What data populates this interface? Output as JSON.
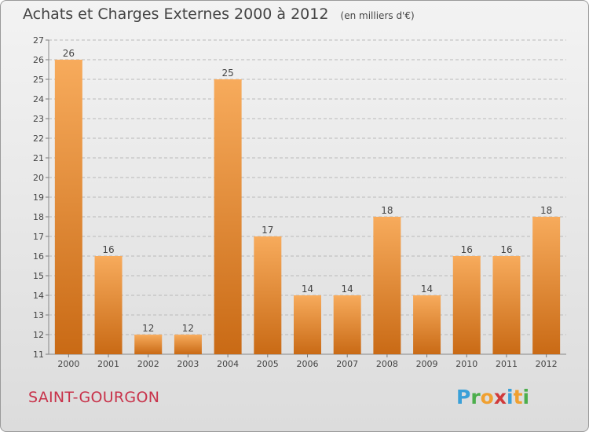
{
  "title": "Achats et Charges Externes 2000 à 2012",
  "unit": "(en milliers d'€)",
  "city": "SAINT-GOURGON",
  "brand": {
    "letters": [
      "P",
      "r",
      "o",
      "x",
      "i",
      "t",
      "i"
    ],
    "colors": [
      "#3aa0d8",
      "#4cae4c",
      "#f0a030",
      "#d03a3a",
      "#3aa0d8",
      "#f0a030",
      "#4cae4c"
    ]
  },
  "colors": {
    "bar": "#f28a28",
    "bar_light": "#f7ab5c",
    "bar_dark": "#c96a15",
    "grid": "#b9b9b9",
    "text": "#444444"
  },
  "chart_data": {
    "type": "bar",
    "title": "Achats et Charges Externes 2000 à 2012",
    "subtitle": "(en milliers d'€)",
    "categories": [
      "2000",
      "2001",
      "2002",
      "2003",
      "2004",
      "2005",
      "2006",
      "2007",
      "2008",
      "2009",
      "2010",
      "2011",
      "2012"
    ],
    "values": [
      26,
      16,
      12,
      12,
      25,
      17,
      14,
      14,
      18,
      14,
      16,
      16,
      18
    ],
    "ylim": [
      11,
      27
    ],
    "yticks": [
      "11",
      "12",
      "13",
      "14",
      "15",
      "16",
      "17",
      "18",
      "19",
      "20",
      "21",
      "22",
      "23",
      "24",
      "25",
      "26",
      "27"
    ],
    "grid": true,
    "data_labels": true
  }
}
